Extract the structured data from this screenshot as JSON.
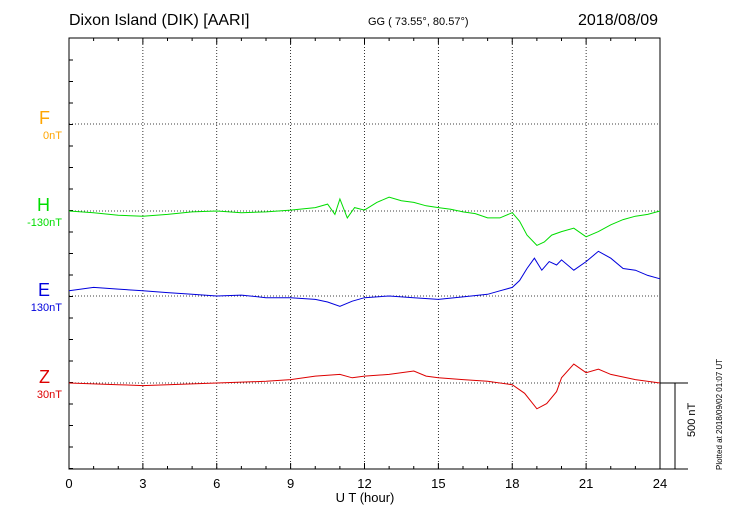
{
  "header": {
    "station": "Dixon Island (DIK)  [AARI]",
    "coords": "GG ( 73.55°,  80.57°)",
    "date": "2018/08/09"
  },
  "footer": {
    "plotted": "Plotted at 2018/09/02 01:07 UT",
    "scale_label": "500 nT"
  },
  "chart_data": {
    "type": "line",
    "xlabel": "U T (hour)",
    "xlim": [
      0,
      24
    ],
    "x_ticks": [
      "0",
      "3",
      "6",
      "9",
      "12",
      "15",
      "18",
      "21",
      "24"
    ],
    "grid": true,
    "scale_bar_nT": 500,
    "channels": [
      {
        "name": "F",
        "baseline": "0nT",
        "color": "#ffa500",
        "points": []
      },
      {
        "name": "H",
        "baseline": "-130nT",
        "color": "#00dd00",
        "points": [
          [
            0,
            0
          ],
          [
            1,
            -10
          ],
          [
            2,
            -25
          ],
          [
            3,
            -30
          ],
          [
            4,
            -20
          ],
          [
            5,
            -5
          ],
          [
            6,
            0
          ],
          [
            7,
            -10
          ],
          [
            8,
            -5
          ],
          [
            9,
            5
          ],
          [
            10,
            20
          ],
          [
            10.5,
            40
          ],
          [
            10.8,
            -20
          ],
          [
            11,
            70
          ],
          [
            11.3,
            -40
          ],
          [
            11.6,
            20
          ],
          [
            12,
            5
          ],
          [
            12.5,
            50
          ],
          [
            13,
            80
          ],
          [
            13.5,
            60
          ],
          [
            14,
            50
          ],
          [
            14.5,
            30
          ],
          [
            15,
            20
          ],
          [
            15.5,
            10
          ],
          [
            16,
            -5
          ],
          [
            16.5,
            -15
          ],
          [
            17,
            -40
          ],
          [
            17.5,
            -40
          ],
          [
            18,
            -10
          ],
          [
            18.3,
            -60
          ],
          [
            18.6,
            -140
          ],
          [
            19,
            -200
          ],
          [
            19.3,
            -180
          ],
          [
            19.6,
            -140
          ],
          [
            20,
            -120
          ],
          [
            20.5,
            -100
          ],
          [
            21,
            -150
          ],
          [
            21.5,
            -120
          ],
          [
            22,
            -80
          ],
          [
            22.5,
            -50
          ],
          [
            23,
            -30
          ],
          [
            23.5,
            -20
          ],
          [
            24,
            0
          ]
        ]
      },
      {
        "name": "E",
        "baseline": "130nT",
        "color": "#0000dd",
        "points": [
          [
            0,
            30
          ],
          [
            1,
            50
          ],
          [
            2,
            40
          ],
          [
            3,
            30
          ],
          [
            4,
            20
          ],
          [
            5,
            10
          ],
          [
            6,
            0
          ],
          [
            7,
            5
          ],
          [
            8,
            -10
          ],
          [
            9,
            -10
          ],
          [
            10,
            -20
          ],
          [
            10.5,
            -35
          ],
          [
            11,
            -60
          ],
          [
            11.5,
            -30
          ],
          [
            12,
            -10
          ],
          [
            13,
            0
          ],
          [
            14,
            -10
          ],
          [
            15,
            -20
          ],
          [
            16,
            -5
          ],
          [
            17,
            10
          ],
          [
            17.5,
            30
          ],
          [
            18,
            50
          ],
          [
            18.3,
            90
          ],
          [
            18.6,
            160
          ],
          [
            18.9,
            220
          ],
          [
            19.2,
            150
          ],
          [
            19.5,
            200
          ],
          [
            19.8,
            180
          ],
          [
            20,
            210
          ],
          [
            20.5,
            150
          ],
          [
            21,
            200
          ],
          [
            21.5,
            260
          ],
          [
            22,
            220
          ],
          [
            22.5,
            160
          ],
          [
            23,
            150
          ],
          [
            23.5,
            120
          ],
          [
            24,
            100
          ]
        ]
      },
      {
        "name": "Z",
        "baseline": "30nT",
        "color": "#dd0000",
        "points": [
          [
            0,
            0
          ],
          [
            1,
            -5
          ],
          [
            2,
            -10
          ],
          [
            3,
            -15
          ],
          [
            4,
            -10
          ],
          [
            5,
            -5
          ],
          [
            6,
            0
          ],
          [
            7,
            5
          ],
          [
            8,
            10
          ],
          [
            9,
            20
          ],
          [
            10,
            40
          ],
          [
            11,
            50
          ],
          [
            11.5,
            30
          ],
          [
            12,
            40
          ],
          [
            13,
            50
          ],
          [
            14,
            70
          ],
          [
            14.5,
            40
          ],
          [
            15,
            30
          ],
          [
            16,
            20
          ],
          [
            17,
            10
          ],
          [
            18,
            -10
          ],
          [
            18.5,
            -60
          ],
          [
            19,
            -150
          ],
          [
            19.4,
            -120
          ],
          [
            19.8,
            -50
          ],
          [
            20,
            30
          ],
          [
            20.5,
            110
          ],
          [
            21,
            60
          ],
          [
            21.5,
            80
          ],
          [
            22,
            50
          ],
          [
            23,
            20
          ],
          [
            24,
            0
          ]
        ]
      }
    ]
  }
}
